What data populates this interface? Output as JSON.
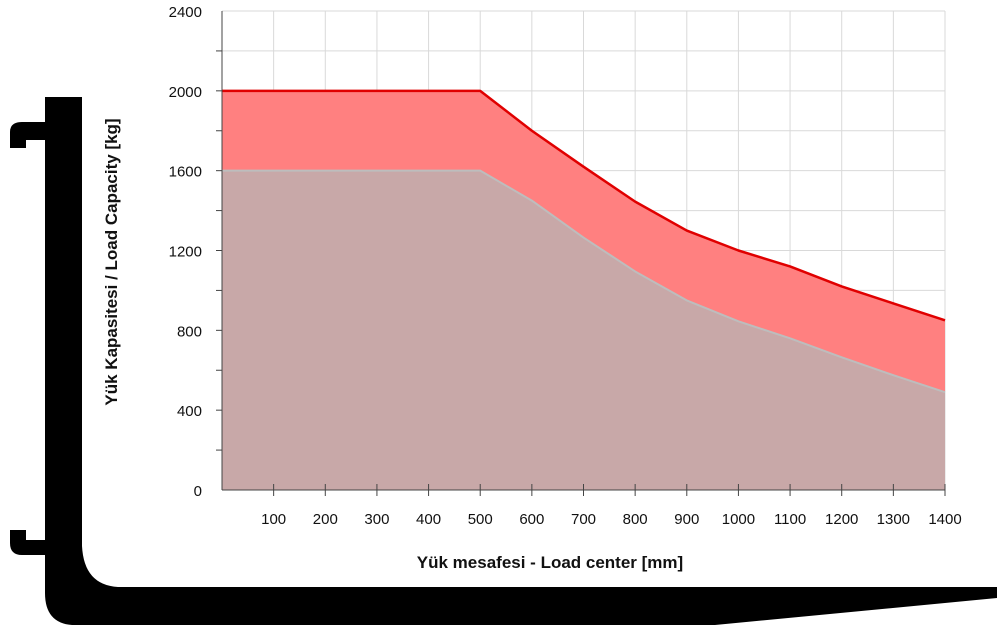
{
  "chart_data": {
    "type": "area",
    "x": [
      0,
      100,
      200,
      300,
      400,
      500,
      600,
      700,
      800,
      900,
      1000,
      1100,
      1200,
      1300,
      1400
    ],
    "series": [
      {
        "values": [
          2000,
          2000,
          2000,
          2000,
          2000,
          2000,
          1800,
          1620,
          1445,
          1300,
          1200,
          1120,
          1020,
          935,
          850
        ],
        "color": "#ff8080",
        "line_color": "#e00000"
      },
      {
        "values": [
          1600,
          1600,
          1600,
          1600,
          1600,
          1600,
          1450,
          1265,
          1095,
          950,
          845,
          760,
          665,
          575,
          490
        ],
        "color": "#c8a8a8",
        "line_color": "#bdbdbd"
      }
    ],
    "xlabel": "Yük mesafesi - Load center  [mm]",
    "ylabel": "Yük Kapasitesi / Load Capacity [kg]",
    "x_tick_labels": [
      "100",
      "200",
      "300",
      "400",
      "500",
      "600",
      "700",
      "800",
      "900",
      "1000",
      "1100",
      "1200",
      "1300",
      "1400"
    ],
    "y_tick_labels": [
      "0",
      "400",
      "800",
      "1200",
      "1600",
      "2000",
      "2400"
    ],
    "xlim": [
      0,
      1400
    ],
    "ylim": [
      0,
      2400
    ],
    "grid": true,
    "background_shape": "fork-silhouette",
    "fork_color": "#000000"
  }
}
